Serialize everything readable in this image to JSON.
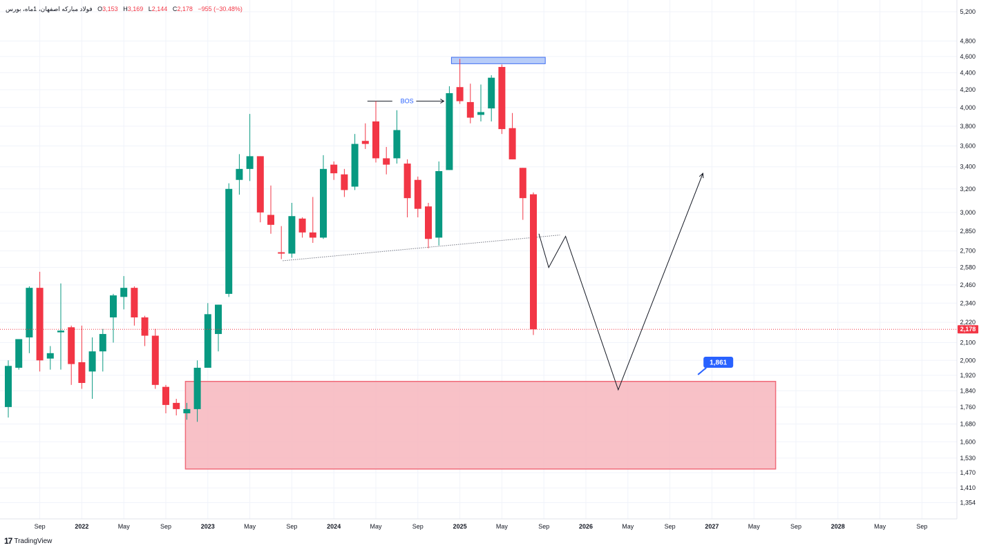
{
  "legend": {
    "symbol": "فولاد مبارکه اصفهان، 1ماه، بورس",
    "open_label": "O",
    "open": "3,153",
    "high_label": "H",
    "high": "3,169",
    "low_label": "L",
    "low": "2,144",
    "close_label": "C",
    "close": "2,178",
    "change": "−955 (−30.48%)"
  },
  "brand": {
    "logo": "17",
    "name": "TradingView"
  },
  "colors": {
    "up": "#089981",
    "down": "#f23645",
    "zone_fill": "#f7b6bd",
    "zone_stroke": "#f06b79",
    "resistance": "#b8cdf8",
    "resistance_stroke": "#3d6df2",
    "label_blue": "#2962ff"
  },
  "chart_data": {
    "type": "candlestick",
    "scale": "log",
    "ylim": [
      1320,
      5250
    ],
    "y_ticks": [
      5200,
      4800,
      4600,
      4400,
      4200,
      4000,
      3800,
      3600,
      3400,
      3200,
      3000,
      2850,
      2700,
      2580,
      2460,
      2340,
      2220,
      2100,
      2000,
      1920,
      1840,
      1760,
      1680,
      1600,
      1530,
      1470,
      1410,
      1354
    ],
    "x_ticks": [
      {
        "label": "Sep",
        "month": "2021-09"
      },
      {
        "label": "2022",
        "month": "2022-01",
        "year": true
      },
      {
        "label": "May",
        "month": "2022-05"
      },
      {
        "label": "Sep",
        "month": "2022-09"
      },
      {
        "label": "2023",
        "month": "2023-01",
        "year": true
      },
      {
        "label": "May",
        "month": "2023-05"
      },
      {
        "label": "Sep",
        "month": "2023-09"
      },
      {
        "label": "2024",
        "month": "2024-01",
        "year": true
      },
      {
        "label": "May",
        "month": "2024-05"
      },
      {
        "label": "Sep",
        "month": "2024-09"
      },
      {
        "label": "2025",
        "month": "2025-01",
        "year": true
      },
      {
        "label": "May",
        "month": "2025-05"
      },
      {
        "label": "Sep",
        "month": "2025-09"
      },
      {
        "label": "2026",
        "month": "2026-01",
        "year": true
      },
      {
        "label": "May",
        "month": "2026-05"
      },
      {
        "label": "Sep",
        "month": "2026-09"
      },
      {
        "label": "2027",
        "month": "2027-01",
        "year": true
      },
      {
        "label": "May",
        "month": "2027-05"
      },
      {
        "label": "Sep",
        "month": "2027-09"
      },
      {
        "label": "2028",
        "month": "2028-01",
        "year": true
      },
      {
        "label": "May",
        "month": "2028-05"
      },
      {
        "label": "Sep",
        "month": "2028-09"
      }
    ],
    "candles": [
      {
        "month": "2021-06",
        "o": 1760,
        "h": 2000,
        "l": 1710,
        "c": 1970
      },
      {
        "month": "2021-07",
        "o": 1960,
        "h": 2100,
        "l": 1950,
        "c": 2120
      },
      {
        "month": "2021-08",
        "o": 2130,
        "h": 2450,
        "l": 2040,
        "c": 2440
      },
      {
        "month": "2021-09",
        "o": 2440,
        "h": 2550,
        "l": 1940,
        "c": 2000
      },
      {
        "month": "2021-10",
        "o": 2010,
        "h": 2080,
        "l": 1950,
        "c": 2040
      },
      {
        "month": "2021-11",
        "o": 2160,
        "h": 2470,
        "l": 1950,
        "c": 2170
      },
      {
        "month": "2021-12",
        "o": 2190,
        "h": 2200,
        "l": 1870,
        "c": 1980
      },
      {
        "month": "2022-01",
        "o": 1990,
        "h": 2200,
        "l": 1850,
        "c": 1880
      },
      {
        "month": "2022-02",
        "o": 1940,
        "h": 2130,
        "l": 1800,
        "c": 2050
      },
      {
        "month": "2022-03",
        "o": 2050,
        "h": 2180,
        "l": 1940,
        "c": 2150
      },
      {
        "month": "2022-04",
        "o": 2250,
        "h": 2400,
        "l": 2100,
        "c": 2390
      },
      {
        "month": "2022-05",
        "o": 2380,
        "h": 2520,
        "l": 2300,
        "c": 2440
      },
      {
        "month": "2022-06",
        "o": 2440,
        "h": 2450,
        "l": 2200,
        "c": 2250
      },
      {
        "month": "2022-07",
        "o": 2250,
        "h": 2260,
        "l": 2080,
        "c": 2140
      },
      {
        "month": "2022-08",
        "o": 2140,
        "h": 2180,
        "l": 1850,
        "c": 1870
      },
      {
        "month": "2022-09",
        "o": 1860,
        "h": 1870,
        "l": 1730,
        "c": 1770
      },
      {
        "month": "2022-10",
        "o": 1780,
        "h": 1800,
        "l": 1720,
        "c": 1750
      },
      {
        "month": "2022-11",
        "o": 1730,
        "h": 1780,
        "l": 1700,
        "c": 1750
      },
      {
        "month": "2022-12",
        "o": 1750,
        "h": 2000,
        "l": 1690,
        "c": 1960
      },
      {
        "month": "2023-01",
        "o": 1960,
        "h": 2340,
        "l": 1960,
        "c": 2270
      },
      {
        "month": "2023-02",
        "o": 2150,
        "h": 2330,
        "l": 2050,
        "c": 2330
      },
      {
        "month": "2023-03",
        "o": 2400,
        "h": 3250,
        "l": 2380,
        "c": 3200
      },
      {
        "month": "2023-04",
        "o": 3280,
        "h": 3520,
        "l": 3150,
        "c": 3380
      },
      {
        "month": "2023-05",
        "o": 3380,
        "h": 3930,
        "l": 3270,
        "c": 3500
      },
      {
        "month": "2023-06",
        "o": 3500,
        "h": 3500,
        "l": 2920,
        "c": 3000
      },
      {
        "month": "2023-07",
        "o": 2980,
        "h": 3230,
        "l": 2830,
        "c": 2900
      },
      {
        "month": "2023-08",
        "o": 2690,
        "h": 2890,
        "l": 2640,
        "c": 2680
      },
      {
        "month": "2023-09",
        "o": 2680,
        "h": 3080,
        "l": 2650,
        "c": 2970
      },
      {
        "month": "2023-10",
        "o": 2950,
        "h": 2960,
        "l": 2800,
        "c": 2840
      },
      {
        "month": "2023-11",
        "o": 2840,
        "h": 3130,
        "l": 2760,
        "c": 2800
      },
      {
        "month": "2023-12",
        "o": 2800,
        "h": 3510,
        "l": 2790,
        "c": 3380
      },
      {
        "month": "2024-01",
        "o": 3420,
        "h": 3450,
        "l": 3280,
        "c": 3340
      },
      {
        "month": "2024-02",
        "o": 3330,
        "h": 3380,
        "l": 3130,
        "c": 3190
      },
      {
        "month": "2024-03",
        "o": 3220,
        "h": 3720,
        "l": 3190,
        "c": 3620
      },
      {
        "month": "2024-04",
        "o": 3650,
        "h": 3830,
        "l": 3570,
        "c": 3620
      },
      {
        "month": "2024-05",
        "o": 3850,
        "h": 4070,
        "l": 3440,
        "c": 3480
      },
      {
        "month": "2024-06",
        "o": 3480,
        "h": 3590,
        "l": 3330,
        "c": 3420
      },
      {
        "month": "2024-07",
        "o": 3480,
        "h": 3970,
        "l": 3430,
        "c": 3760
      },
      {
        "month": "2024-08",
        "o": 3430,
        "h": 3470,
        "l": 2960,
        "c": 3120
      },
      {
        "month": "2024-09",
        "o": 3280,
        "h": 3310,
        "l": 2960,
        "c": 3030
      },
      {
        "month": "2024-10",
        "o": 3050,
        "h": 3080,
        "l": 2720,
        "c": 2790
      },
      {
        "month": "2024-11",
        "o": 2800,
        "h": 3450,
        "l": 2740,
        "c": 3360
      },
      {
        "month": "2024-12",
        "o": 3370,
        "h": 4240,
        "l": 3370,
        "c": 4160
      },
      {
        "month": "2025-01",
        "o": 4230,
        "h": 4570,
        "l": 4040,
        "c": 4070
      },
      {
        "month": "2025-02",
        "o": 4060,
        "h": 4270,
        "l": 3830,
        "c": 3890
      },
      {
        "month": "2025-03",
        "o": 3920,
        "h": 4260,
        "l": 3850,
        "c": 3950
      },
      {
        "month": "2025-04",
        "o": 3990,
        "h": 4370,
        "l": 3850,
        "c": 4340
      },
      {
        "month": "2025-05",
        "o": 4470,
        "h": 4500,
        "l": 3720,
        "c": 3770
      },
      {
        "month": "2025-06",
        "o": 3780,
        "h": 3940,
        "l": 3470,
        "c": 3470
      },
      {
        "month": "2025-07",
        "o": 3390,
        "h": 3390,
        "l": 2940,
        "c": 3120
      },
      {
        "month": "2025-08",
        "o": 3153,
        "h": 3169,
        "l": 2144,
        "c": 2178
      }
    ],
    "last_price": 2178,
    "annotations": {
      "bos_label": "BOS",
      "target_label": "1,861",
      "last_price_label": "2,178"
    }
  }
}
